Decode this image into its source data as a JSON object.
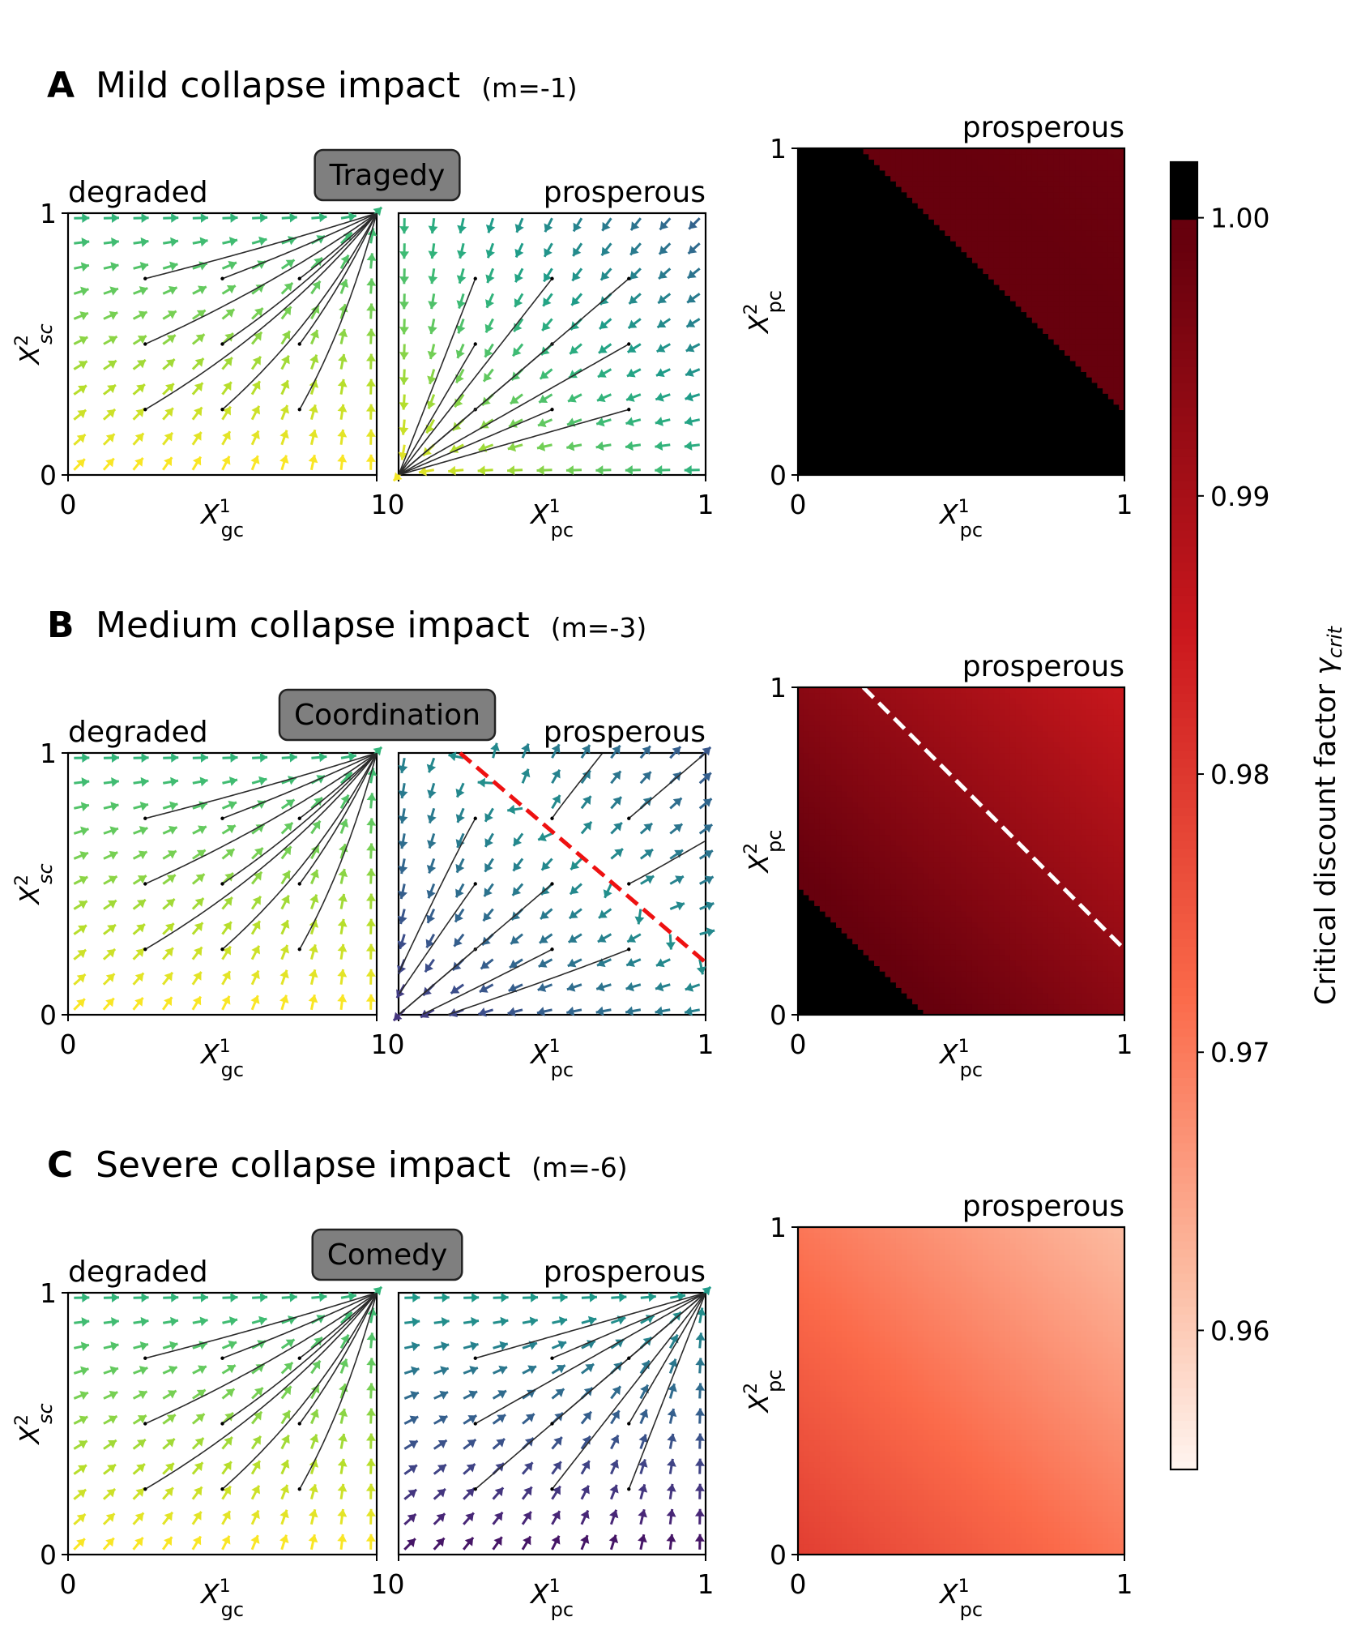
{
  "chart_data": [
    {
      "panel": "A",
      "letter": "A",
      "title": "Mild collapse impact",
      "param": "(m=-1)",
      "m": -1,
      "badge": "Tragedy",
      "degraded_label": "degraded",
      "prosperous_label": "prosperous",
      "gc_xlabel": "X¹gc",
      "sc_ylabel": "X²sc",
      "pc_xlabel": "X¹pc",
      "pc_ylabel": "X²pc",
      "tick0": "0",
      "tick1": "1",
      "tick_joined": "10",
      "quiver_degraded": {
        "type": "quiver",
        "flow": "toward (1,1)",
        "xlim": [
          0,
          1
        ],
        "ylim": [
          0,
          1
        ]
      },
      "quiver_prosperous": {
        "type": "quiver",
        "flow": "toward (0,0)",
        "xlim": [
          0,
          1
        ],
        "ylim": [
          0,
          1
        ]
      },
      "heatmap": {
        "type": "heatmap",
        "xlim": [
          0,
          1
        ],
        "ylim": [
          0,
          1
        ],
        "region_above_1": "x+y < 1.2 (black)",
        "gamma_range": [
          0.998,
          1.0
        ]
      }
    },
    {
      "panel": "B",
      "letter": "B",
      "title": "Medium collapse impact",
      "param": "(m=-3)",
      "m": -3,
      "badge": "Coordination",
      "degraded_label": "degraded",
      "prosperous_label": "prosperous",
      "gc_xlabel": "X¹gc",
      "sc_ylabel": "X²sc",
      "pc_xlabel": "X¹pc",
      "pc_ylabel": "X²pc",
      "tick0": "0",
      "tick1": "1",
      "tick_joined": "10",
      "quiver_degraded": {
        "type": "quiver",
        "flow": "toward (1,1)",
        "xlim": [
          0,
          1
        ],
        "ylim": [
          0,
          1
        ]
      },
      "quiver_prosperous": {
        "type": "quiver",
        "flow": "bistable: toward (0,0) or (1,1)",
        "separatrix": "x+y = 1.2",
        "xlim": [
          0,
          1
        ],
        "ylim": [
          0,
          1
        ]
      },
      "heatmap": {
        "type": "heatmap",
        "xlim": [
          0,
          1
        ],
        "ylim": [
          0,
          1
        ],
        "region_above_1": "x+y < 0.4 (black)",
        "separatrix": "x+y = 1.2 (dashed white)",
        "gamma_range": [
          0.985,
          1.0
        ]
      }
    },
    {
      "panel": "C",
      "letter": "C",
      "title": "Severe collapse impact",
      "param": "(m=-6)",
      "m": -6,
      "badge": "Comedy",
      "degraded_label": "degraded",
      "prosperous_label": "prosperous",
      "gc_xlabel": "X¹gc",
      "sc_ylabel": "X²sc",
      "pc_xlabel": "X¹pc",
      "pc_ylabel": "X²pc",
      "tick0": "0",
      "tick1": "1",
      "tick_joined": "10",
      "quiver_degraded": {
        "type": "quiver",
        "flow": "toward (1,1)",
        "xlim": [
          0,
          1
        ],
        "ylim": [
          0,
          1
        ]
      },
      "quiver_prosperous": {
        "type": "quiver",
        "flow": "toward (1,1)",
        "xlim": [
          0,
          1
        ],
        "ylim": [
          0,
          1
        ]
      },
      "heatmap": {
        "type": "heatmap",
        "xlim": [
          0,
          1
        ],
        "ylim": [
          0,
          1
        ],
        "gamma_range": [
          0.962,
          0.979
        ]
      }
    }
  ],
  "colorbar": {
    "label": "Critical discount factor γcrit",
    "range": [
      0.955,
      1.002
    ],
    "ticks": [
      {
        "value": 1.0,
        "label": "1.00"
      },
      {
        "value": 0.99,
        "label": "0.99"
      },
      {
        "value": 0.98,
        "label": "0.98"
      },
      {
        "value": 0.97,
        "label": "0.97"
      },
      {
        "value": 0.96,
        "label": "0.96"
      }
    ],
    "colors": [
      "#fff5f0",
      "#fcbba1",
      "#fb6a4a",
      "#cb181d",
      "#67000d",
      "#000000"
    ]
  }
}
